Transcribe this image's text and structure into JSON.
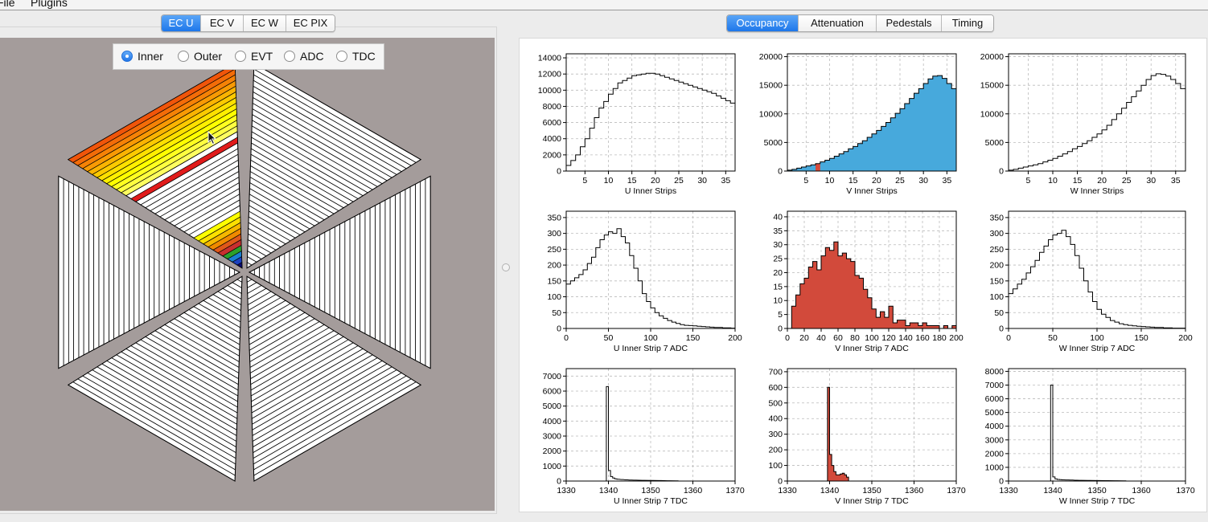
{
  "menu": {
    "file": "File",
    "plugins": "Plugins"
  },
  "left_tabs": [
    {
      "label": "EC U",
      "active": true
    },
    {
      "label": "EC V",
      "active": false
    },
    {
      "label": "EC W",
      "active": false
    },
    {
      "label": "EC PIX",
      "active": false
    }
  ],
  "right_tabs": [
    {
      "label": "Occupancy",
      "active": true
    },
    {
      "label": "Attenuation",
      "active": false
    },
    {
      "label": "Pedestals",
      "active": false
    },
    {
      "label": "Timing",
      "active": false
    }
  ],
  "view_options": [
    {
      "label": "Inner",
      "selected": true
    },
    {
      "label": "Outer",
      "selected": false
    },
    {
      "label": "EVT",
      "selected": false
    },
    {
      "label": "ADC",
      "selected": false
    },
    {
      "label": "TDC",
      "selected": false
    }
  ],
  "detector_view": {
    "highlighted_sector": 1,
    "selected_strip": 7,
    "colors": {
      "background": "#a49c9b",
      "selected_strip": "#e01b1b",
      "hot": "#f0550a",
      "warm": "#ffff00",
      "cold": "#0a0a70"
    }
  },
  "chart_data": [
    {
      "id": "u-strips",
      "type": "histogram",
      "xlabel": "U Inner Strips",
      "xlim": [
        1,
        37
      ],
      "ylim": [
        0,
        14500
      ],
      "xticks": [
        5,
        10,
        15,
        20,
        25,
        30,
        35
      ],
      "yticks": [
        0,
        2000,
        4000,
        6000,
        8000,
        10000,
        12000,
        14000
      ],
      "fill": "none",
      "hl_bin": null,
      "x": [
        1,
        2,
        3,
        4,
        5,
        6,
        7,
        8,
        9,
        10,
        11,
        12,
        13,
        14,
        15,
        16,
        17,
        18,
        19,
        20,
        21,
        22,
        23,
        24,
        25,
        26,
        27,
        28,
        29,
        30,
        31,
        32,
        33,
        34,
        35,
        36
      ],
      "values": [
        700,
        1300,
        2000,
        3000,
        4000,
        5300,
        6600,
        7800,
        8600,
        9500,
        10200,
        10900,
        11200,
        11500,
        11800,
        11900,
        12000,
        12100,
        12100,
        12000,
        11800,
        11600,
        11400,
        11200,
        11000,
        10800,
        10600,
        10400,
        10200,
        10000,
        9800,
        9600,
        9300,
        9000,
        8700,
        8400
      ]
    },
    {
      "id": "v-strips",
      "type": "histogram",
      "xlabel": "V Inner Strips",
      "xlim": [
        1,
        37
      ],
      "ylim": [
        0,
        20500
      ],
      "xticks": [
        5,
        10,
        15,
        20,
        25,
        30,
        35
      ],
      "yticks": [
        0,
        5000,
        10000,
        15000,
        20000
      ],
      "fill": "#47a9dc",
      "hl_bin": 7,
      "hl_color": "#d64b3b",
      "x": [
        1,
        2,
        3,
        4,
        5,
        6,
        7,
        8,
        9,
        10,
        11,
        12,
        13,
        14,
        15,
        16,
        17,
        18,
        19,
        20,
        21,
        22,
        23,
        24,
        25,
        26,
        27,
        28,
        29,
        30,
        31,
        32,
        33,
        34,
        35,
        36
      ],
      "values": [
        150,
        300,
        500,
        700,
        900,
        1100,
        1300,
        1600,
        1900,
        2200,
        2600,
        3000,
        3400,
        3900,
        4300,
        4800,
        5300,
        5900,
        6500,
        7100,
        7800,
        8500,
        9300,
        10100,
        10900,
        11800,
        12700,
        13600,
        14400,
        15300,
        16100,
        16600,
        16700,
        16200,
        15300,
        14400
      ]
    },
    {
      "id": "w-strips",
      "type": "histogram",
      "xlabel": "W Inner Strips",
      "xlim": [
        1,
        37
      ],
      "ylim": [
        0,
        20500
      ],
      "xticks": [
        5,
        10,
        15,
        20,
        25,
        30,
        35
      ],
      "yticks": [
        0,
        5000,
        10000,
        15000,
        20000
      ],
      "fill": "none",
      "hl_bin": null,
      "x": [
        1,
        2,
        3,
        4,
        5,
        6,
        7,
        8,
        9,
        10,
        11,
        12,
        13,
        14,
        15,
        16,
        17,
        18,
        19,
        20,
        21,
        22,
        23,
        24,
        25,
        26,
        27,
        28,
        29,
        30,
        31,
        32,
        33,
        34,
        35,
        36
      ],
      "values": [
        150,
        300,
        500,
        700,
        900,
        1100,
        1300,
        1600,
        1900,
        2200,
        2600,
        3000,
        3400,
        3900,
        4300,
        4800,
        5300,
        5900,
        6500,
        7200,
        8000,
        9000,
        10000,
        11000,
        12000,
        13000,
        14000,
        15000,
        16000,
        16700,
        17000,
        16900,
        16600,
        16000,
        15300,
        14400
      ]
    },
    {
      "id": "u-adc",
      "type": "histogram",
      "xlabel": "U Inner Strip 7 ADC",
      "xlim": [
        0,
        200
      ],
      "ylim": [
        0,
        370
      ],
      "xticks": [
        0,
        50,
        100,
        150,
        200
      ],
      "yticks": [
        0,
        50,
        100,
        150,
        200,
        250,
        300,
        350
      ],
      "fill": "none",
      "hl_bin": null,
      "x": [
        0,
        5,
        10,
        15,
        20,
        25,
        30,
        35,
        40,
        45,
        50,
        55,
        60,
        65,
        70,
        75,
        80,
        85,
        90,
        95,
        100,
        105,
        110,
        115,
        120,
        125,
        130,
        135,
        140,
        145,
        150,
        155,
        160,
        165,
        170,
        175,
        180,
        185,
        190,
        195
      ],
      "values": [
        140,
        150,
        160,
        170,
        185,
        205,
        225,
        255,
        280,
        295,
        305,
        300,
        315,
        290,
        270,
        230,
        190,
        150,
        110,
        85,
        65,
        50,
        40,
        32,
        25,
        20,
        16,
        12,
        10,
        9,
        8,
        7,
        6,
        5,
        4,
        3,
        3,
        2,
        2,
        1
      ]
    },
    {
      "id": "v-adc",
      "type": "histogram",
      "xlabel": "V Inner Strip 7 ADC",
      "xlim": [
        0,
        200
      ],
      "ylim": [
        0,
        42
      ],
      "xticks": [
        0,
        20,
        40,
        60,
        80,
        100,
        120,
        140,
        160,
        180,
        200
      ],
      "yticks": [
        0,
        5,
        10,
        15,
        20,
        25,
        30,
        35,
        40
      ],
      "fill": "#d24a3b",
      "hl_bin": null,
      "x": [
        5,
        10,
        15,
        20,
        25,
        30,
        35,
        40,
        45,
        50,
        55,
        60,
        65,
        70,
        75,
        80,
        85,
        90,
        95,
        100,
        105,
        110,
        115,
        120,
        125,
        130,
        135,
        140,
        145,
        150,
        155,
        160,
        165,
        170,
        175,
        180,
        185,
        190,
        195
      ],
      "values": [
        8,
        12,
        16,
        18,
        22,
        24,
        21,
        26,
        29,
        28,
        31,
        26,
        27,
        25,
        24,
        19,
        18,
        14,
        11,
        7,
        4,
        6,
        4,
        8,
        2,
        3,
        3,
        1,
        2,
        2,
        1,
        2,
        1,
        1,
        1,
        0,
        1,
        0,
        1
      ]
    },
    {
      "id": "w-adc",
      "type": "histogram",
      "xlabel": "W Inner Strip 7 ADC",
      "xlim": [
        0,
        200
      ],
      "ylim": [
        0,
        370
      ],
      "xticks": [
        0,
        50,
        100,
        150,
        200
      ],
      "yticks": [
        0,
        50,
        100,
        150,
        200,
        250,
        300,
        350
      ],
      "fill": "none",
      "hl_bin": null,
      "x": [
        0,
        5,
        10,
        15,
        20,
        25,
        30,
        35,
        40,
        45,
        50,
        55,
        60,
        65,
        70,
        75,
        80,
        85,
        90,
        95,
        100,
        105,
        110,
        115,
        120,
        125,
        130,
        135,
        140,
        145,
        150,
        155,
        160,
        165,
        170,
        175,
        180,
        185,
        190,
        195
      ],
      "values": [
        110,
        125,
        140,
        155,
        175,
        195,
        215,
        240,
        260,
        280,
        295,
        300,
        310,
        290,
        265,
        230,
        190,
        150,
        115,
        85,
        60,
        45,
        35,
        25,
        20,
        15,
        12,
        10,
        8,
        7,
        6,
        5,
        4,
        3,
        3,
        2,
        2,
        1,
        1,
        1
      ]
    },
    {
      "id": "u-tdc",
      "type": "histogram",
      "xlabel": "U Inner Strip 7 TDC",
      "xlim": [
        1330,
        1370
      ],
      "ylim": [
        0,
        7500
      ],
      "xticks": [
        1330,
        1340,
        1350,
        1360,
        1370
      ],
      "yticks": [
        0,
        1000,
        2000,
        3000,
        4000,
        5000,
        6000,
        7000
      ],
      "fill": "none",
      "hl_bin": null,
      "x": [
        1339.5,
        1340,
        1340.5,
        1341,
        1341.5,
        1342,
        1343,
        1344,
        1345,
        1346,
        1348,
        1350,
        1352,
        1354,
        1356
      ],
      "values": [
        6300,
        700,
        300,
        200,
        150,
        120,
        100,
        80,
        70,
        60,
        50,
        40,
        30,
        20,
        10
      ]
    },
    {
      "id": "v-tdc",
      "type": "histogram",
      "xlabel": "V Inner Strip 7 TDC",
      "xlim": [
        1330,
        1370
      ],
      "ylim": [
        0,
        720
      ],
      "xticks": [
        1330,
        1340,
        1350,
        1360,
        1370
      ],
      "yticks": [
        0,
        100,
        200,
        300,
        400,
        500,
        600,
        700
      ],
      "fill": "#d24a3b",
      "hl_bin": null,
      "x": [
        1339.5,
        1340,
        1340.5,
        1341,
        1341.5,
        1342,
        1342.5,
        1343,
        1343.5,
        1344,
        1344.5
      ],
      "values": [
        600,
        170,
        100,
        60,
        40,
        40,
        45,
        50,
        40,
        25,
        0
      ]
    },
    {
      "id": "w-tdc",
      "type": "histogram",
      "xlabel": "W Inner Strip 7 TDC",
      "xlim": [
        1330,
        1370
      ],
      "ylim": [
        0,
        8200
      ],
      "xticks": [
        1330,
        1340,
        1350,
        1360,
        1370
      ],
      "yticks": [
        0,
        1000,
        2000,
        3000,
        4000,
        5000,
        6000,
        7000,
        8000
      ],
      "fill": "none",
      "hl_bin": null,
      "x": [
        1339.5,
        1340,
        1340.5,
        1341,
        1341.5,
        1342,
        1343,
        1344,
        1345,
        1346,
        1348,
        1350,
        1352,
        1354,
        1356
      ],
      "values": [
        7000,
        300,
        150,
        120,
        100,
        90,
        80,
        70,
        60,
        50,
        40,
        35,
        30,
        25,
        20
      ]
    }
  ]
}
